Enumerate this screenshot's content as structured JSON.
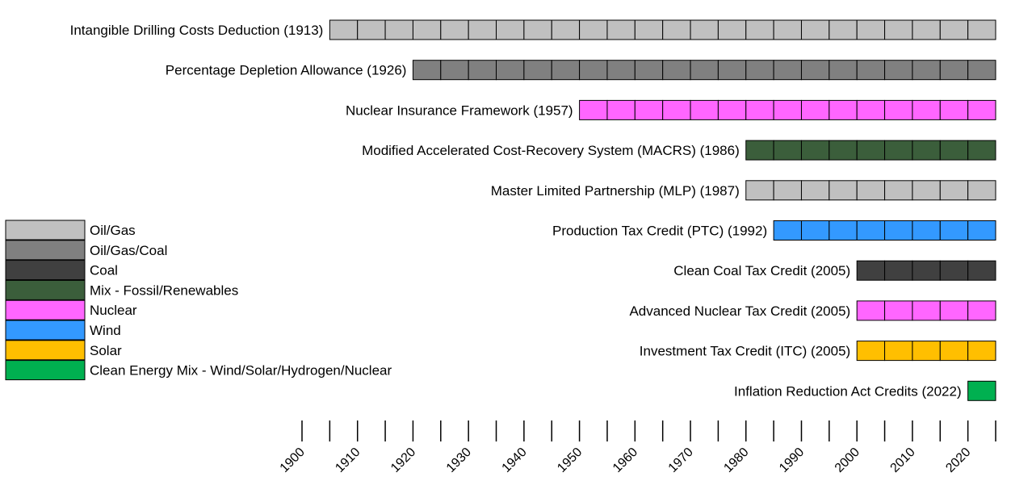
{
  "chart_data": {
    "type": "bar",
    "title": "",
    "xlabel": "",
    "ylabel": "",
    "xlim": [
      1900,
      2025
    ],
    "x_ticks": [
      1900,
      1905,
      1910,
      1915,
      1920,
      1925,
      1930,
      1935,
      1940,
      1945,
      1950,
      1955,
      1960,
      1965,
      1970,
      1975,
      1980,
      1985,
      1990,
      1995,
      2000,
      2005,
      2010,
      2015,
      2020,
      2025
    ],
    "x_tick_labels": [
      "1900",
      "1910",
      "1920",
      "1930",
      "1940",
      "1950",
      "1960",
      "1970",
      "1980",
      "1990",
      "2000",
      "2010",
      "2020"
    ],
    "legend_position": "left",
    "legend": [
      {
        "label": "Oil/Gas",
        "color": "#c0c0c0"
      },
      {
        "label": "Oil/Gas/Coal",
        "color": "#808080"
      },
      {
        "label": "Coal",
        "color": "#404040"
      },
      {
        "label": "Mix - Fossil/Renewables",
        "color": "#3b5e3b"
      },
      {
        "label": "Nuclear",
        "color": "#ff66ff"
      },
      {
        "label": "Wind",
        "color": "#3399ff"
      },
      {
        "label": "Solar",
        "color": "#ffbf00"
      },
      {
        "label": "Clean Energy Mix - Wind/Solar/Hydrogen/Nuclear",
        "color": "#00b050"
      }
    ],
    "policies": [
      {
        "label": "Intangible Drilling Costs Deduction (1913)",
        "start": 1905,
        "end": 2025,
        "category": "Oil/Gas"
      },
      {
        "label": "Percentage Depletion Allowance (1926)",
        "start": 1920,
        "end": 2025,
        "category": "Oil/Gas/Coal"
      },
      {
        "label": "Nuclear Insurance Framework (1957)",
        "start": 1950,
        "end": 2025,
        "category": "Nuclear"
      },
      {
        "label": "Modified Accelerated Cost-Recovery System (MACRS) (1986)",
        "start": 1980,
        "end": 2025,
        "category": "Mix - Fossil/Renewables"
      },
      {
        "label": "Master Limited Partnership (MLP) (1987)",
        "start": 1980,
        "end": 2025,
        "category": "Oil/Gas"
      },
      {
        "label": "Production Tax Credit (PTC) (1992)",
        "start": 1985,
        "end": 2025,
        "category": "Wind"
      },
      {
        "label": "Clean Coal Tax Credit (2005)",
        "start": 2000,
        "end": 2025,
        "category": "Coal"
      },
      {
        "label": "Advanced Nuclear Tax Credit (2005)",
        "start": 2000,
        "end": 2025,
        "category": "Nuclear"
      },
      {
        "label": "Investment Tax Credit (ITC) (2005)",
        "start": 2000,
        "end": 2025,
        "category": "Solar"
      },
      {
        "label": "Inflation Reduction Act Credits (2022)",
        "start": 2020,
        "end": 2025,
        "category": "Clean Energy Mix - Wind/Solar/Hydrogen/Nuclear"
      }
    ]
  }
}
